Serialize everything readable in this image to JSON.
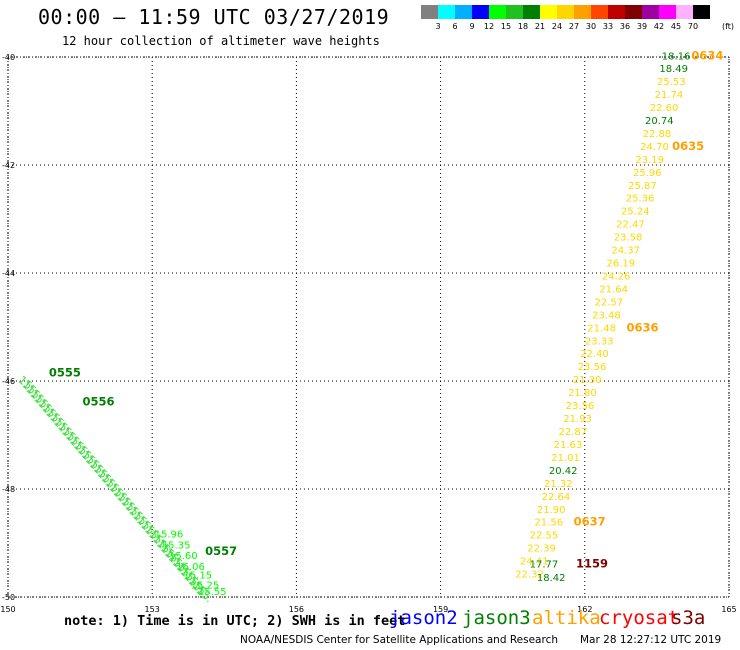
{
  "header": {
    "title": "00:00 – 11:59 UTC 03/27/2019",
    "subtitle": "12 hour collection of altimeter wave heights"
  },
  "color_scale": {
    "labels": [
      "3",
      "6",
      "9",
      "12",
      "15",
      "18",
      "21",
      "24",
      "27",
      "30",
      "33",
      "36",
      "39",
      "42",
      "45",
      "70"
    ],
    "unit": "(ft)",
    "colors": [
      "#808080",
      "#00ffff",
      "#00b0ff",
      "#0000ff",
      "#00ff00",
      "#20c020",
      "#008000",
      "#ffff00",
      "#ffd700",
      "#ffa000",
      "#ff4500",
      "#c00000",
      "#800000",
      "#a000a0",
      "#ff00ff",
      "#ffb0ff",
      "#000000"
    ]
  },
  "axes": {
    "x_ticks": [
      "150",
      "153",
      "156",
      "159",
      "162",
      "165"
    ],
    "y_ticks": [
      "-40",
      "-42",
      "-44",
      "-46",
      "-48",
      "-50"
    ],
    "x_range": [
      150,
      165
    ],
    "y_range": [
      -50,
      -40
    ]
  },
  "east_track": {
    "labels": [
      {
        "text": "18.16",
        "color": "#008000",
        "lon": 163.9,
        "lat": -40.05
      },
      {
        "text": "18.49",
        "color": "#008000",
        "lon": 163.85,
        "lat": -40.28
      },
      {
        "text": "25.53",
        "color": "#ffd700",
        "lon": 163.8,
        "lat": -40.52
      },
      {
        "text": "21.74",
        "color": "#ffd700",
        "lon": 163.75,
        "lat": -40.76
      },
      {
        "text": "22.60",
        "color": "#ffd700",
        "lon": 163.65,
        "lat": -41.0
      },
      {
        "text": "20.74",
        "color": "#008000",
        "lon": 163.55,
        "lat": -41.24
      },
      {
        "text": "22.88",
        "color": "#ffd700",
        "lon": 163.5,
        "lat": -41.48
      },
      {
        "text": "24.70",
        "color": "#ffd700",
        "lon": 163.45,
        "lat": -41.72
      },
      {
        "text": "23.19",
        "color": "#ffd700",
        "lon": 163.35,
        "lat": -41.96
      },
      {
        "text": "25.96",
        "color": "#ffd700",
        "lon": 163.3,
        "lat": -42.2
      },
      {
        "text": "25.87",
        "color": "#ffd700",
        "lon": 163.2,
        "lat": -42.44
      },
      {
        "text": "25.36",
        "color": "#ffd700",
        "lon": 163.15,
        "lat": -42.68
      },
      {
        "text": "25.24",
        "color": "#ffd700",
        "lon": 163.05,
        "lat": -42.92
      },
      {
        "text": "22.47",
        "color": "#ffd700",
        "lon": 162.95,
        "lat": -43.16
      },
      {
        "text": "23.58",
        "color": "#ffd700",
        "lon": 162.9,
        "lat": -43.4
      },
      {
        "text": "24.37",
        "color": "#ffd700",
        "lon": 162.85,
        "lat": -43.64
      },
      {
        "text": "26.19",
        "color": "#ffd700",
        "lon": 162.75,
        "lat": -43.88
      },
      {
        "text": "24.26",
        "color": "#ffd700",
        "lon": 162.65,
        "lat": -44.12
      },
      {
        "text": "21.64",
        "color": "#ffd700",
        "lon": 162.6,
        "lat": -44.36
      },
      {
        "text": "22.57",
        "color": "#ffd700",
        "lon": 162.5,
        "lat": -44.6
      },
      {
        "text": "23.48",
        "color": "#ffd700",
        "lon": 162.45,
        "lat": -44.84
      },
      {
        "text": "21.48",
        "color": "#ffd700",
        "lon": 162.35,
        "lat": -45.08
      },
      {
        "text": "23.33",
        "color": "#ffd700",
        "lon": 162.3,
        "lat": -45.32
      },
      {
        "text": "22.40",
        "color": "#ffd700",
        "lon": 162.2,
        "lat": -45.56
      },
      {
        "text": "23.56",
        "color": "#ffd700",
        "lon": 162.15,
        "lat": -45.8
      },
      {
        "text": "21.30",
        "color": "#ffd700",
        "lon": 162.05,
        "lat": -46.04
      },
      {
        "text": "21.80",
        "color": "#ffd700",
        "lon": 161.95,
        "lat": -46.28
      },
      {
        "text": "23.56",
        "color": "#ffd700",
        "lon": 161.9,
        "lat": -46.52
      },
      {
        "text": "21.93",
        "color": "#ffd700",
        "lon": 161.85,
        "lat": -46.76
      },
      {
        "text": "22.87",
        "color": "#ffd700",
        "lon": 161.75,
        "lat": -47.0
      },
      {
        "text": "21.63",
        "color": "#ffd700",
        "lon": 161.65,
        "lat": -47.24
      },
      {
        "text": "21.01",
        "color": "#ffd700",
        "lon": 161.6,
        "lat": -47.48
      },
      {
        "text": "20.42",
        "color": "#008000",
        "lon": 161.55,
        "lat": -47.72
      },
      {
        "text": "21.32",
        "color": "#ffd700",
        "lon": 161.45,
        "lat": -47.96
      },
      {
        "text": "22.64",
        "color": "#ffd700",
        "lon": 161.4,
        "lat": -48.2
      },
      {
        "text": "21.90",
        "color": "#ffd700",
        "lon": 161.3,
        "lat": -48.44
      },
      {
        "text": "21.56",
        "color": "#ffd700",
        "lon": 161.25,
        "lat": -48.68
      },
      {
        "text": "22.55",
        "color": "#ffd700",
        "lon": 161.15,
        "lat": -48.92
      },
      {
        "text": "22.39",
        "color": "#ffd700",
        "lon": 161.1,
        "lat": -49.16
      },
      {
        "text": "24.41",
        "color": "#ffd700",
        "lon": 160.95,
        "lat": -49.4
      },
      {
        "text": "17.77",
        "color": "#008000",
        "lon": 161.15,
        "lat": -49.45
      },
      {
        "text": "22.32",
        "color": "#ffd700",
        "lon": 160.85,
        "lat": -49.64
      },
      {
        "text": "18.42",
        "color": "#008000",
        "lon": 161.3,
        "lat": -49.7
      }
    ],
    "time_labels": [
      {
        "text": "0634",
        "color": "#ffa000",
        "lon": 164.55,
        "lat": -40.05
      },
      {
        "text": "0635",
        "color": "#ffa000",
        "lon": 164.15,
        "lat": -41.72
      },
      {
        "text": "0636",
        "color": "#ffa000",
        "lon": 163.2,
        "lat": -45.08
      },
      {
        "text": "0637",
        "color": "#ffa000",
        "lon": 162.1,
        "lat": -48.68
      },
      {
        "text": "1159",
        "color": "#800000",
        "lon": 162.15,
        "lat": -49.45
      }
    ]
  },
  "west_track": {
    "labels": [
      {
        "text": "15.96",
        "color": "#00ff00",
        "lon": 153.05,
        "lat": -48.9
      },
      {
        "text": "15.35",
        "color": "#00ff00",
        "lon": 153.2,
        "lat": -49.1
      },
      {
        "text": "15.60",
        "color": "#00ff00",
        "lon": 153.35,
        "lat": -49.3
      },
      {
        "text": "16.06",
        "color": "#00ff00",
        "lon": 153.5,
        "lat": -49.5
      },
      {
        "text": "15.15",
        "color": "#00ff00",
        "lon": 153.65,
        "lat": -49.66
      },
      {
        "text": "15.25",
        "color": "#00ff00",
        "lon": 153.8,
        "lat": -49.84
      },
      {
        "text": "15.55",
        "color": "#00ff00",
        "lon": 153.95,
        "lat": -49.96
      }
    ],
    "time_labels": [
      {
        "text": "0555",
        "color": "#008000",
        "lon": 150.85,
        "lat": -45.92
      },
      {
        "text": "0556",
        "color": "#008000",
        "lon": 151.55,
        "lat": -46.45
      },
      {
        "text": "0557",
        "color": "#008000",
        "lon": 154.1,
        "lat": -49.22
      }
    ]
  },
  "footer": {
    "note": "note: 1) Time is in UTC; 2) SWH is in feet",
    "satellites": [
      {
        "name": "jason2",
        "color": "#0000ff"
      },
      {
        "name": "jason3",
        "color": "#008000"
      },
      {
        "name": "altika",
        "color": "#ffa000"
      },
      {
        "name": "cryosat",
        "color": "#ff0000"
      },
      {
        "name": "s3a",
        "color": "#800000"
      }
    ],
    "credit": "NOAA/NESDIS Center for Satellite Applications and Research",
    "timestamp": "Mar 28 12:27:12 UTC 2019"
  }
}
